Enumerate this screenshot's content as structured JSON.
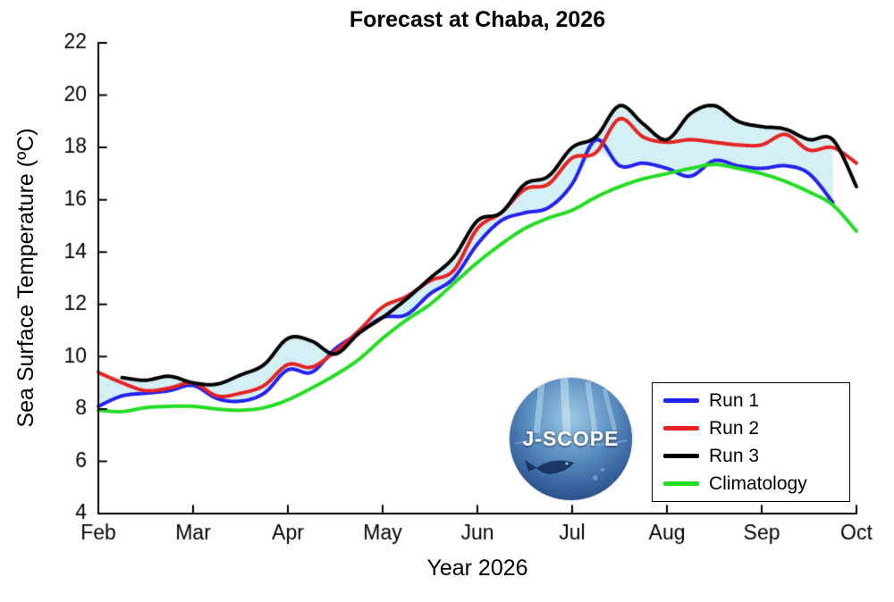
{
  "logo": {
    "text": "J-SCOPE"
  },
  "chart_data": {
    "type": "line",
    "title": "Forecast at Chaba, 2026",
    "xlabel": "Year 2026",
    "ylabel": "Sea Surface Temperature (ºC)",
    "xlim": [
      0,
      8
    ],
    "ylim": [
      4,
      22
    ],
    "yticks": [
      4,
      6,
      8,
      10,
      12,
      14,
      16,
      18,
      20,
      22
    ],
    "xticklabels": [
      "Feb",
      "Mar",
      "Apr",
      "May",
      "Jun",
      "Jul",
      "Aug",
      "Sep",
      "Oct"
    ],
    "grid": false,
    "legend_position": "lower right inside",
    "x_unit": "months from Feb 2026 (0 = Feb, 8 = Oct)",
    "x": [
      0,
      0.25,
      0.5,
      0.75,
      1,
      1.25,
      1.5,
      1.75,
      2,
      2.25,
      2.5,
      2.75,
      3,
      3.25,
      3.5,
      3.75,
      4,
      4.25,
      4.5,
      4.75,
      5,
      5.25,
      5.5,
      5.75,
      6,
      6.25,
      6.5,
      6.75,
      7,
      7.25,
      7.5,
      7.75,
      8
    ],
    "series": [
      {
        "name": "Run 1",
        "color": "#2222ee",
        "in_envelope": true,
        "values": [
          8.1,
          8.5,
          8.6,
          8.7,
          8.9,
          8.4,
          8.3,
          8.6,
          9.5,
          9.4,
          10.3,
          10.9,
          11.5,
          11.6,
          12.4,
          13.0,
          14.3,
          15.2,
          15.5,
          15.7,
          16.6,
          18.3,
          17.3,
          17.4,
          17.2,
          16.9,
          17.5,
          17.3,
          17.2,
          17.3,
          17.0,
          15.9,
          null
        ]
      },
      {
        "name": "Run 2",
        "color": "#e62222",
        "in_envelope": true,
        "values": [
          9.4,
          9.0,
          8.7,
          8.8,
          9.0,
          8.5,
          8.6,
          8.9,
          9.7,
          9.6,
          10.2,
          11.0,
          11.9,
          12.3,
          12.9,
          13.3,
          14.9,
          15.5,
          16.4,
          16.6,
          17.6,
          17.8,
          19.1,
          18.4,
          18.2,
          18.3,
          18.2,
          18.1,
          18.1,
          18.5,
          17.9,
          18.0,
          17.4
        ]
      },
      {
        "name": "Run 3",
        "color": "#000000",
        "in_envelope": true,
        "values": [
          null,
          9.2,
          9.1,
          9.25,
          9.0,
          8.95,
          9.3,
          9.7,
          10.7,
          10.6,
          10.1,
          10.9,
          11.5,
          12.2,
          13.0,
          13.8,
          15.2,
          15.5,
          16.6,
          16.9,
          18.0,
          18.4,
          19.6,
          18.9,
          18.3,
          19.3,
          19.6,
          19.0,
          18.8,
          18.7,
          18.3,
          18.3,
          16.5
        ]
      },
      {
        "name": "Climatology",
        "color": "#22dd22",
        "in_envelope": false,
        "values": [
          7.95,
          7.9,
          8.05,
          8.1,
          8.1,
          8.0,
          7.95,
          8.05,
          8.35,
          8.8,
          9.3,
          9.9,
          10.7,
          11.4,
          12.0,
          12.8,
          13.6,
          14.3,
          14.9,
          15.3,
          15.6,
          16.1,
          16.5,
          16.8,
          17.0,
          17.2,
          17.35,
          17.2,
          17.0,
          16.7,
          16.3,
          15.8,
          14.8
        ]
      }
    ],
    "fill": {
      "description": "shaded ensemble spread between min and max of Run 1, Run 2, Run 3; ends where Run 1 ends",
      "color": "#d4f0f4"
    }
  }
}
